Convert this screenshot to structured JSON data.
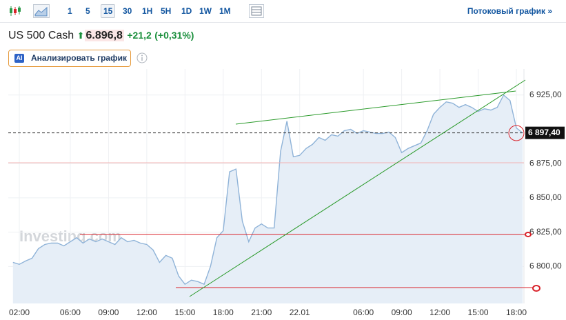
{
  "toolbar": {
    "intervals": [
      "1",
      "5",
      "15",
      "30",
      "1H",
      "5H",
      "1D",
      "1W",
      "1M"
    ],
    "selected": "15",
    "stream_link": "Потоковый график »"
  },
  "quote": {
    "name": "US 500 Cash",
    "price": "6.896,8",
    "change": "+21,2",
    "change_pct": "(+0,31%)"
  },
  "analyze_button": {
    "badge": "AI",
    "label": "Анализировать график"
  },
  "chart_data": {
    "type": "area",
    "watermark": "Investing.com",
    "categories": [
      null,
      "02:00",
      null,
      null,
      null,
      null,
      null,
      null,
      null,
      "06:00",
      null,
      null,
      null,
      null,
      null,
      "09:00",
      null,
      null,
      null,
      null,
      null,
      "12:00",
      null,
      null,
      null,
      null,
      null,
      "15:00",
      null,
      null,
      null,
      null,
      null,
      "18:00",
      null,
      null,
      null,
      null,
      null,
      "21:00",
      null,
      null,
      null,
      null,
      null,
      "22.01",
      null,
      null,
      null,
      null,
      null,
      null,
      null,
      null,
      null,
      "06:00",
      null,
      null,
      null,
      null,
      null,
      "09:00",
      null,
      null,
      null,
      null,
      null,
      "12:00",
      null,
      null,
      null,
      null,
      null,
      "15:00",
      null,
      null,
      null,
      null,
      null,
      "18:00",
      null
    ],
    "series": [
      {
        "color": "#8fb3d8",
        "values": [
          6803,
          6801.5,
          6804,
          6806,
          6813,
          6816,
          6817,
          6817,
          6815,
          6818,
          6821,
          6817,
          6820,
          6818,
          6820,
          6818,
          6816,
          6821,
          6818,
          6819,
          6817,
          6816,
          6812,
          6803,
          6808,
          6806,
          6793,
          6787,
          6790,
          6789,
          6787,
          6800,
          6821,
          6826,
          6869,
          6871,
          6833,
          6818,
          6828,
          6831,
          6828,
          6828,
          6884,
          6906,
          6880,
          6881,
          6886,
          6889,
          6894,
          6892,
          6896,
          6895,
          6899,
          6900,
          6897,
          6899,
          6898,
          6897,
          6897,
          6898,
          6894,
          6883,
          6886,
          6888,
          6890,
          6899,
          6911,
          6916,
          6920,
          6919,
          6916,
          6918,
          6916,
          6913,
          6915,
          6914,
          6916,
          6925,
          6921,
          6901,
          6897.4
        ]
      }
    ],
    "ylim": [
      6773,
      6944
    ],
    "yticks": [
      {
        "value": 6800,
        "label": "6 800,00"
      },
      {
        "value": 6825,
        "label": "6 825,00"
      },
      {
        "value": 6850,
        "label": "6 850,00"
      },
      {
        "value": 6875,
        "label": "6 875,00"
      },
      {
        "value": 6925,
        "label": "6 925,00"
      }
    ],
    "last_price": {
      "value": 6897.4,
      "label": "6 897,40"
    },
    "grid": true
  }
}
